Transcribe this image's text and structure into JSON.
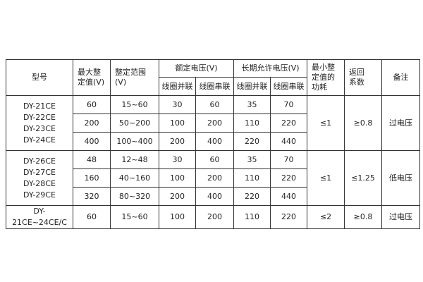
{
  "header": {
    "model": "型号",
    "max_setting": [
      "最大整",
      "定值(V)"
    ],
    "setting_range": [
      "整定范围",
      "(V)"
    ],
    "rated_voltage": "额定电压(V)",
    "long_term_voltage": "长期允许电压(V)",
    "sub": [
      "线圈并联",
      "线圈串联",
      "线圈并联",
      "线圈串联"
    ],
    "min_power": [
      "最小整",
      "定值的",
      "功耗"
    ],
    "return_coef": [
      "返回",
      "系数"
    ],
    "remark": "备注"
  },
  "groups": [
    {
      "models": [
        "DY-21CE",
        "DY-22CE",
        "DY-23CE",
        "DY-24CE"
      ],
      "power": "≤1",
      "coef": "≥0.8",
      "remark": "过电压",
      "rows": [
        [
          "60",
          "15~60",
          "30",
          "60",
          "35",
          "70"
        ],
        [
          "200",
          "50~200",
          "100",
          "200",
          "110",
          "220"
        ],
        [
          "400",
          "100~400",
          "200",
          "400",
          "220",
          "440"
        ]
      ]
    },
    {
      "models": [
        "DY-26CE",
        "DY-27CE",
        "DY-28CE",
        "DY-29CE"
      ],
      "power": "≤1",
      "coef": "≤1.25",
      "remark": "低电压",
      "rows": [
        [
          "48",
          "12~48",
          "30",
          "60",
          "35",
          "70"
        ],
        [
          "160",
          "40~160",
          "100",
          "200",
          "110",
          "220"
        ],
        [
          "320",
          "80~320",
          "200",
          "400",
          "220",
          "440"
        ]
      ]
    },
    {
      "models": [
        "DY-21CE~24CE/C"
      ],
      "power": "≤2",
      "coef": "≥0.8",
      "remark": "过电压",
      "rows": [
        [
          "60",
          "15~60",
          "100",
          "200",
          "110",
          "220"
        ]
      ]
    }
  ]
}
